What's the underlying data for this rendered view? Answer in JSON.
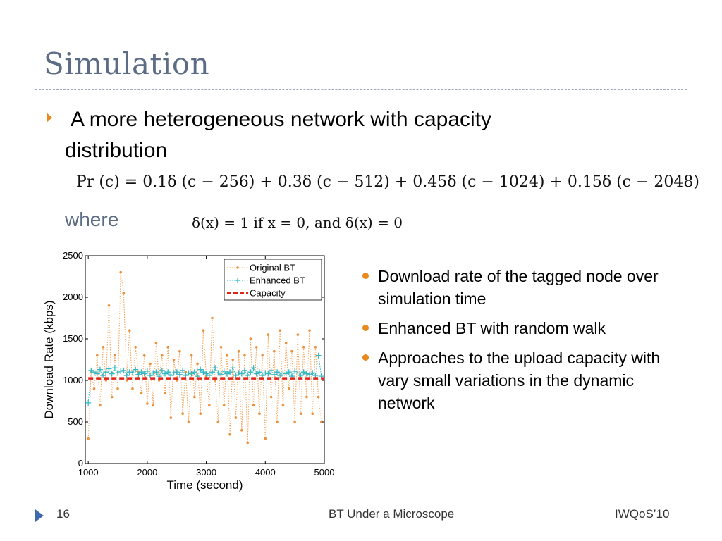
{
  "slide": {
    "title": "Simulation",
    "main_bullet_line1": "A more heterogeneous network with capacity",
    "main_bullet_line2": "distribution",
    "formula": "Pr (c) = 0.1δ (c − 256) + 0.3δ (c − 512) + 0.45δ (c − 1024) + 0.15δ (c − 2048)",
    "where_label": "where",
    "delta_definition": "δ(x) = 1  if  x = 0,  and  δ(x) = 0",
    "side_bullets": [
      "Download rate of the tagged node over simulation time",
      "Enhanced BT with random walk",
      "Approaches to the upload capacity with vary small variations in the dynamic network"
    ]
  },
  "footer": {
    "page_number": "16",
    "center_text": "BT Under a Microscope",
    "right_text": "IWQoS’10"
  },
  "colors": {
    "title": "#5b6c84",
    "accent": "#e98a1f",
    "footer_arrow": "#3f6ab0",
    "original_bt": "#f0913a",
    "enhanced_bt": "#33b8c4",
    "capacity": "#e2231a"
  },
  "chart_data": {
    "type": "line",
    "xlabel": "Time (second)",
    "ylabel": "Download Rate (kbps)",
    "xlim": [
      950,
      5000
    ],
    "ylim": [
      0,
      2500
    ],
    "xticks": [
      1000,
      2000,
      3000,
      4000,
      5000
    ],
    "yticks": [
      0,
      500,
      1000,
      1500,
      2000,
      2500
    ],
    "grid": false,
    "legend_position": "top-right",
    "series": [
      {
        "name": "Original BT",
        "style": "dotted-with-dots",
        "x": [
          1000,
          1050,
          1100,
          1150,
          1200,
          1250,
          1300,
          1350,
          1400,
          1450,
          1500,
          1550,
          1600,
          1650,
          1700,
          1750,
          1800,
          1850,
          1900,
          1950,
          2000,
          2050,
          2100,
          2150,
          2200,
          2250,
          2300,
          2350,
          2400,
          2450,
          2500,
          2550,
          2600,
          2650,
          2700,
          2750,
          2800,
          2850,
          2900,
          2950,
          3000,
          3050,
          3100,
          3150,
          3200,
          3250,
          3300,
          3350,
          3400,
          3450,
          3500,
          3550,
          3600,
          3650,
          3700,
          3750,
          3800,
          3850,
          3900,
          3950,
          4000,
          4050,
          4100,
          4150,
          4200,
          4250,
          4300,
          4350,
          4400,
          4450,
          4500,
          4550,
          4600,
          4650,
          4700,
          4750,
          4800,
          4850,
          4900,
          4950
        ],
        "values": [
          300,
          1100,
          900,
          1300,
          700,
          1400,
          1000,
          1900,
          800,
          1300,
          900,
          2300,
          2050,
          1000,
          1600,
          900,
          1400,
          1100,
          850,
          1300,
          720,
          1200,
          700,
          1450,
          1000,
          1300,
          850,
          1400,
          550,
          1250,
          1000,
          1350,
          600,
          1100,
          500,
          1300,
          800,
          1200,
          600,
          1600,
          1050,
          700,
          1750,
          1000,
          500,
          1400,
          700,
          1300,
          350,
          1250,
          550,
          1350,
          400,
          1300,
          250,
          1500,
          700,
          1400,
          600,
          1300,
          300,
          1550,
          800,
          1350,
          500,
          1600,
          700,
          1450,
          900,
          1350,
          500,
          1550,
          600,
          1400,
          800,
          1600,
          600,
          1400,
          800,
          500
        ]
      },
      {
        "name": "Enhanced BT",
        "style": "dotted-with-plus",
        "x": [
          1000,
          1050,
          1100,
          1150,
          1200,
          1250,
          1300,
          1350,
          1400,
          1450,
          1500,
          1550,
          1600,
          1650,
          1700,
          1750,
          1800,
          1850,
          1900,
          1950,
          2000,
          2050,
          2100,
          2150,
          2200,
          2250,
          2300,
          2350,
          2400,
          2450,
          2500,
          2550,
          2600,
          2650,
          2700,
          2750,
          2800,
          2850,
          2900,
          2950,
          3000,
          3050,
          3100,
          3150,
          3200,
          3250,
          3300,
          3350,
          3400,
          3450,
          3500,
          3550,
          3600,
          3650,
          3700,
          3750,
          3800,
          3850,
          3900,
          3950,
          4000,
          4050,
          4100,
          4150,
          4200,
          4250,
          4300,
          4350,
          4400,
          4450,
          4500,
          4550,
          4600,
          4650,
          4700,
          4750,
          4800,
          4850,
          4900,
          4950
        ],
        "values": [
          730,
          1120,
          1100,
          1080,
          1130,
          1060,
          1100,
          1140,
          1080,
          1150,
          1090,
          1110,
          1120,
          1060,
          1100,
          1090,
          1130,
          1070,
          1100,
          1080,
          1110,
          1060,
          1090,
          1100,
          1050,
          1120,
          1080,
          1100,
          1060,
          1090,
          1100,
          1070,
          1120,
          1060,
          1090,
          1080,
          1100,
          1050,
          1130,
          1100,
          1080,
          1060,
          1100,
          1150,
          1090,
          1070,
          1110,
          1080,
          1100,
          1150,
          1060,
          1090,
          1080,
          1120,
          1060,
          1100,
          1150,
          1080,
          1100,
          1060,
          1090,
          1080,
          1120,
          1070,
          1100,
          1060,
          1090,
          1080,
          1100,
          1050,
          1110,
          1090,
          1060,
          1100,
          1080,
          1070,
          1090,
          1060,
          1300,
          1050
        ]
      },
      {
        "name": "Capacity",
        "style": "dashed-thick",
        "x": [
          1000,
          5000
        ],
        "values": [
          1024,
          1024
        ]
      }
    ]
  }
}
